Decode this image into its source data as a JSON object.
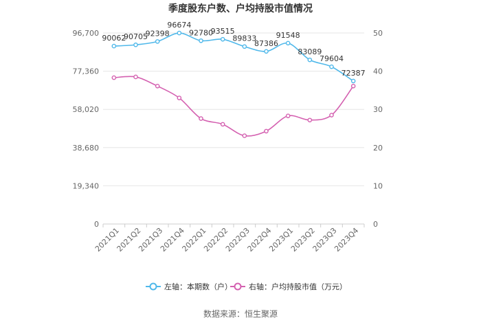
{
  "chart_data": {
    "type": "line",
    "title": "季度股东户数、户均持股市值情况",
    "categories": [
      "2021Q1",
      "2021Q2",
      "2021Q3",
      "2021Q4",
      "2022Q1",
      "2022Q2",
      "2022Q3",
      "2022Q4",
      "2023Q1",
      "2023Q2",
      "2023Q3",
      "2023Q4"
    ],
    "left_axis": {
      "ticks": [
        "0",
        "19,340",
        "38,680",
        "58,020",
        "77,360",
        "96,700"
      ],
      "ylim": [
        0,
        96700
      ]
    },
    "right_axis": {
      "ticks": [
        "0",
        "10",
        "20",
        "30",
        "40",
        "50"
      ],
      "ylim": [
        0,
        50
      ]
    },
    "series": [
      {
        "name": "左轴：本期数（户）",
        "axis": "left",
        "color": "#4fb8ea",
        "values": [
          90062,
          90705,
          92398,
          96674,
          92780,
          93515,
          89833,
          87386,
          91548,
          83089,
          79604,
          72387
        ],
        "labels": [
          "90062",
          "90705",
          "92398",
          "96674",
          "92780",
          "93515",
          "89833",
          "87386",
          "91548",
          "83089",
          "79604",
          "72387"
        ]
      },
      {
        "name": "右轴：户均持股市值（万元）",
        "axis": "right",
        "color": "#d460b0",
        "values": [
          38.3,
          38.5,
          36.1,
          33.0,
          27.6,
          26.1,
          23.1,
          24.3,
          28.3,
          27.2,
          28.5,
          36.1
        ]
      }
    ],
    "grid": true,
    "legend_position": "bottom"
  },
  "source_text": "数据来源：恒生聚源"
}
